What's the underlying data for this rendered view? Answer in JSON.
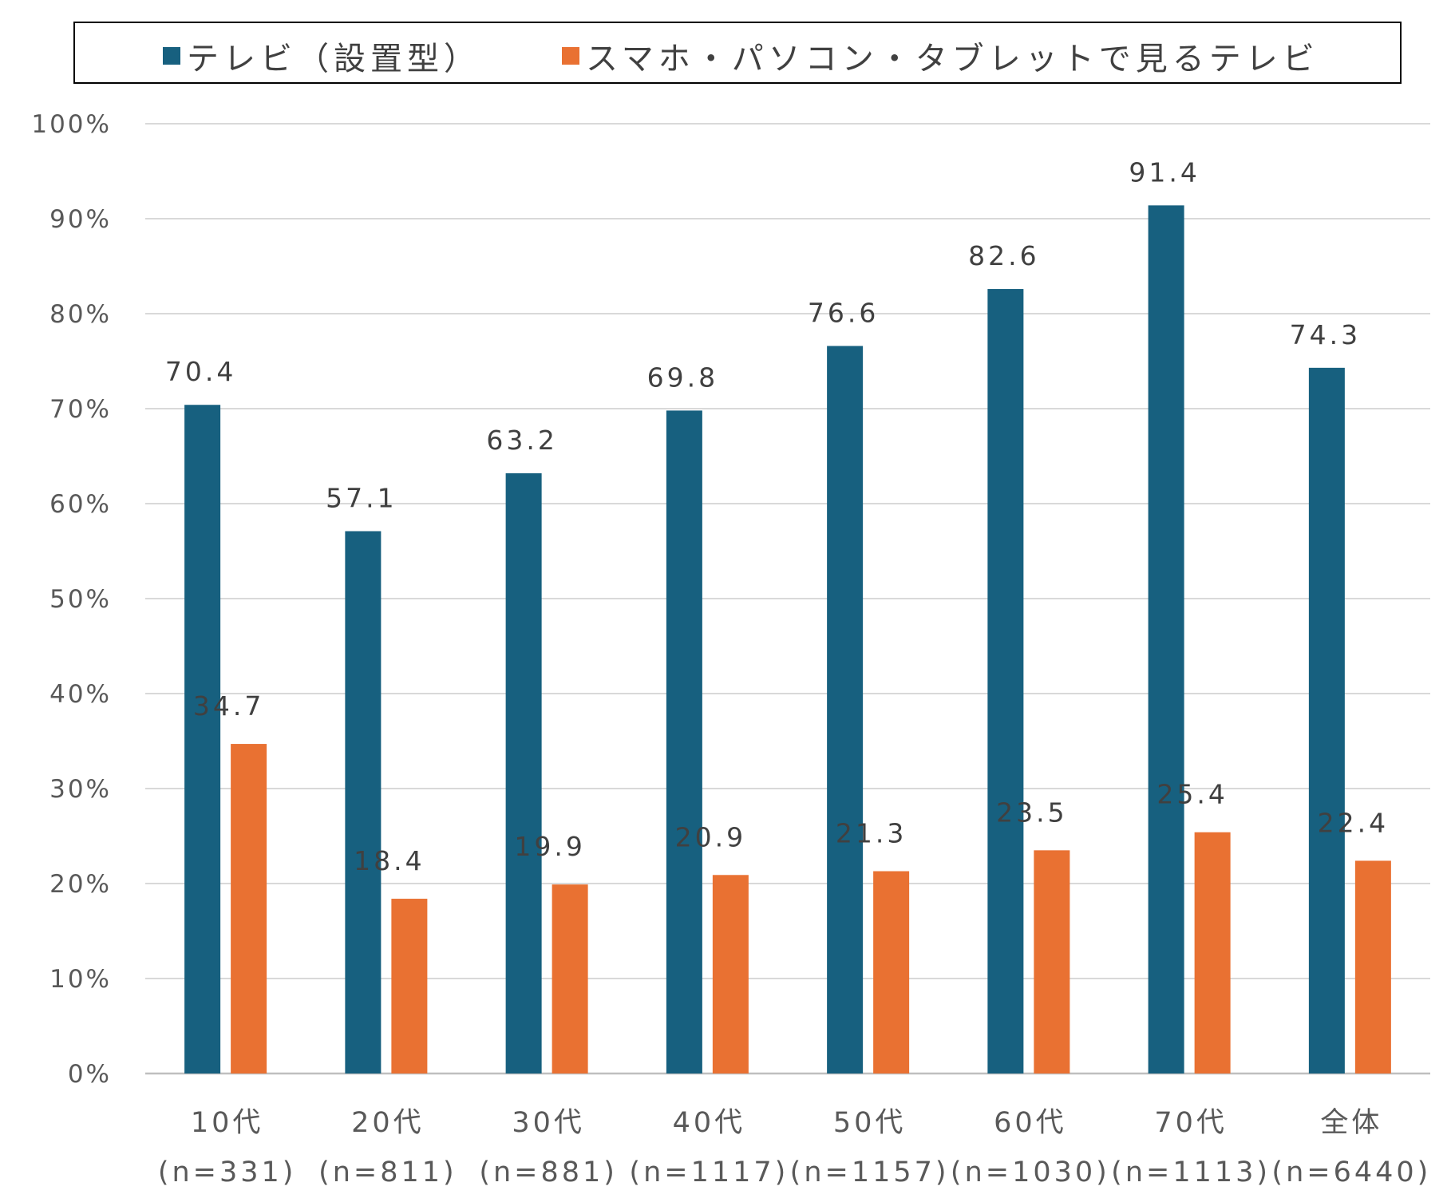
{
  "chart_data": {
    "type": "bar",
    "categories": [
      [
        "10代",
        "(n=331)"
      ],
      [
        "20代",
        "(n=811)"
      ],
      [
        "30代",
        "(n=881)"
      ],
      [
        "40代",
        "(n=1117)"
      ],
      [
        "50代",
        "(n=1157)"
      ],
      [
        "60代",
        "(n=1030)"
      ],
      [
        "70代",
        "(n=1113)"
      ],
      [
        "全体",
        "(n=6440)"
      ]
    ],
    "series": [
      {
        "name": "テレビ（設置型）",
        "color": "#17607f",
        "values": [
          70.4,
          57.1,
          63.2,
          69.8,
          76.6,
          82.6,
          91.4,
          74.3
        ],
        "labels": [
          "70.4",
          "57.1",
          "63.2",
          "69.8",
          "76.6",
          "82.6",
          "91.4",
          "74.3"
        ]
      },
      {
        "name": "スマホ・パソコン・タブレットで見るテレビ",
        "color": "#e97132",
        "values": [
          34.7,
          18.4,
          19.9,
          20.9,
          21.3,
          23.5,
          25.4,
          22.4
        ],
        "labels": [
          "34.7",
          "18.4",
          "19.9",
          "20.9",
          "21.3",
          "23.5",
          "25.4",
          "22.4"
        ]
      }
    ],
    "yticks": [
      "0%",
      "10%",
      "20%",
      "30%",
      "40%",
      "50%",
      "60%",
      "70%",
      "80%",
      "90%",
      "100%"
    ],
    "ylim": [
      0,
      100
    ],
    "grid": true,
    "legend": "top"
  }
}
